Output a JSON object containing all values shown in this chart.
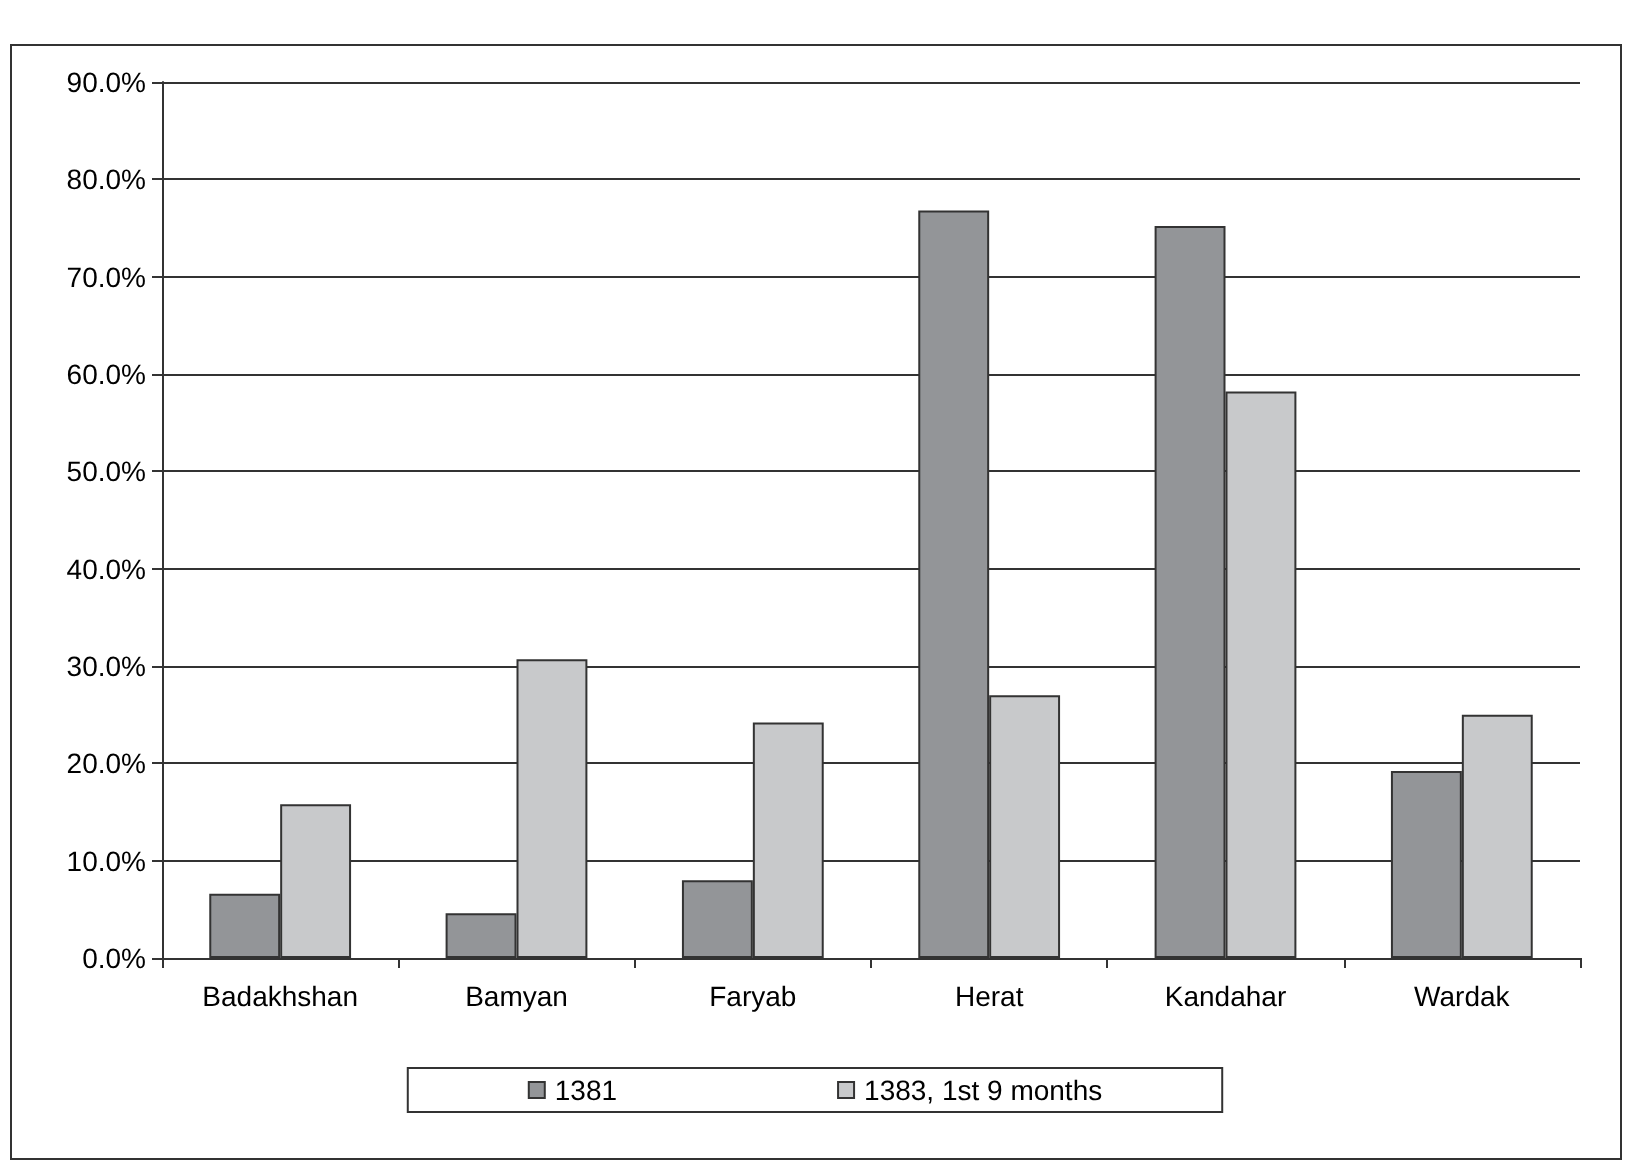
{
  "chart_data": {
    "type": "bar",
    "categories": [
      "Badakhshan",
      "Bamyan",
      "Faryab",
      "Herat",
      "Kandahar",
      "Wardak"
    ],
    "series": [
      {
        "name": "1381",
        "color": "#939598",
        "values": [
          6.6,
          4.6,
          8.0,
          76.8,
          75.2,
          19.2
        ]
      },
      {
        "name": "1383, 1st 9 months",
        "color": "#c8c9cb",
        "values": [
          15.8,
          30.7,
          24.2,
          27.0,
          58.2,
          25.0
        ]
      }
    ],
    "ylim": [
      0,
      90
    ],
    "yticks": [
      {
        "value": 0,
        "label": "0.0%"
      },
      {
        "value": 10,
        "label": "10.0%"
      },
      {
        "value": 20,
        "label": "20.0%"
      },
      {
        "value": 30,
        "label": "30.0%"
      },
      {
        "value": 40,
        "label": "40.0%"
      },
      {
        "value": 50,
        "label": "50.0%"
      },
      {
        "value": 60,
        "label": "60.0%"
      },
      {
        "value": 70,
        "label": "70.0%"
      },
      {
        "value": 80,
        "label": "80.0%"
      },
      {
        "value": 90,
        "label": "90.0%"
      }
    ],
    "grid": "y",
    "legend": "bottom"
  }
}
